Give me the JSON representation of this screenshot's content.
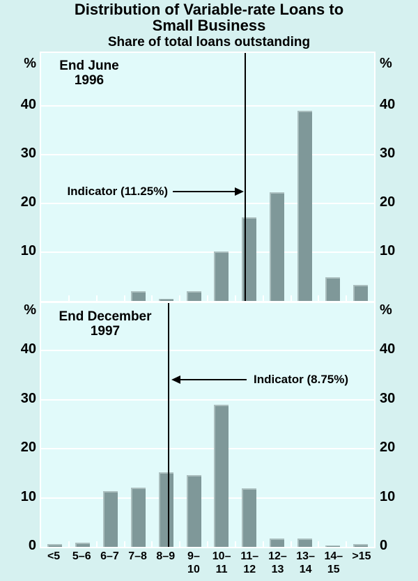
{
  "title_line1": "Distribution of Variable-rate Loans to",
  "title_line2": "Small Business",
  "subtitle": "Share of total loans outstanding",
  "chart_data": {
    "type": "bar",
    "title": "Distribution of Variable-rate Loans to Small Business",
    "subtitle": "Share of total loans outstanding",
    "ylabel": "%",
    "unit": "%",
    "ylim": [
      0,
      50
    ],
    "grid": true,
    "categories": [
      "<5",
      "5–6",
      "6–7",
      "7–8",
      "8–9",
      "9–10",
      "10–11",
      "11–12",
      "12–13",
      "13–14",
      "14–15",
      ">15"
    ],
    "category_labels": [
      {
        "line1": "<5",
        "line2": ""
      },
      {
        "line1": "5–6",
        "line2": ""
      },
      {
        "line1": "6–7",
        "line2": ""
      },
      {
        "line1": "7–8",
        "line2": ""
      },
      {
        "line1": "8–9",
        "line2": ""
      },
      {
        "line1": "9–",
        "line2": "10"
      },
      {
        "line1": "10–",
        "line2": "11"
      },
      {
        "line1": "11–",
        "line2": "12"
      },
      {
        "line1": "12–",
        "line2": "13"
      },
      {
        "line1": "13–",
        "line2": "14"
      },
      {
        "line1": "14–",
        "line2": "15"
      },
      {
        "line1": ">15",
        "line2": ""
      }
    ],
    "panels": [
      {
        "label_line1": "End June",
        "label_line2": "1996",
        "unit_left": "%",
        "unit_right": "%",
        "yticks": [
          10,
          20,
          30,
          40
        ],
        "values": [
          0,
          0,
          0,
          2,
          0.4,
          2,
          10.2,
          17.2,
          22.3,
          39,
          4.8,
          3.3
        ],
        "indicator": {
          "value": 11.25,
          "label": "Indicator (11.25%)",
          "text_side": "left"
        }
      },
      {
        "label_line1": "End December",
        "label_line2": "1997",
        "unit_left": "%",
        "unit_right": "%",
        "yticks": [
          0,
          10,
          20,
          30,
          40
        ],
        "values": [
          0.6,
          0.8,
          11.4,
          12,
          15.2,
          14.6,
          29,
          11.9,
          1.7,
          1.7,
          0.3,
          0.6
        ],
        "indicator": {
          "value": 8.75,
          "label": "Indicator (8.75%)",
          "text_side": "right"
        }
      }
    ],
    "colors": {
      "background": "#d6f1f0",
      "plot_background": "#e1fafa",
      "bar": "#7f9899",
      "bar_highlight": "#aabebe",
      "grid": "#ffffff",
      "text": "#000000",
      "indicator": "#000000"
    }
  }
}
